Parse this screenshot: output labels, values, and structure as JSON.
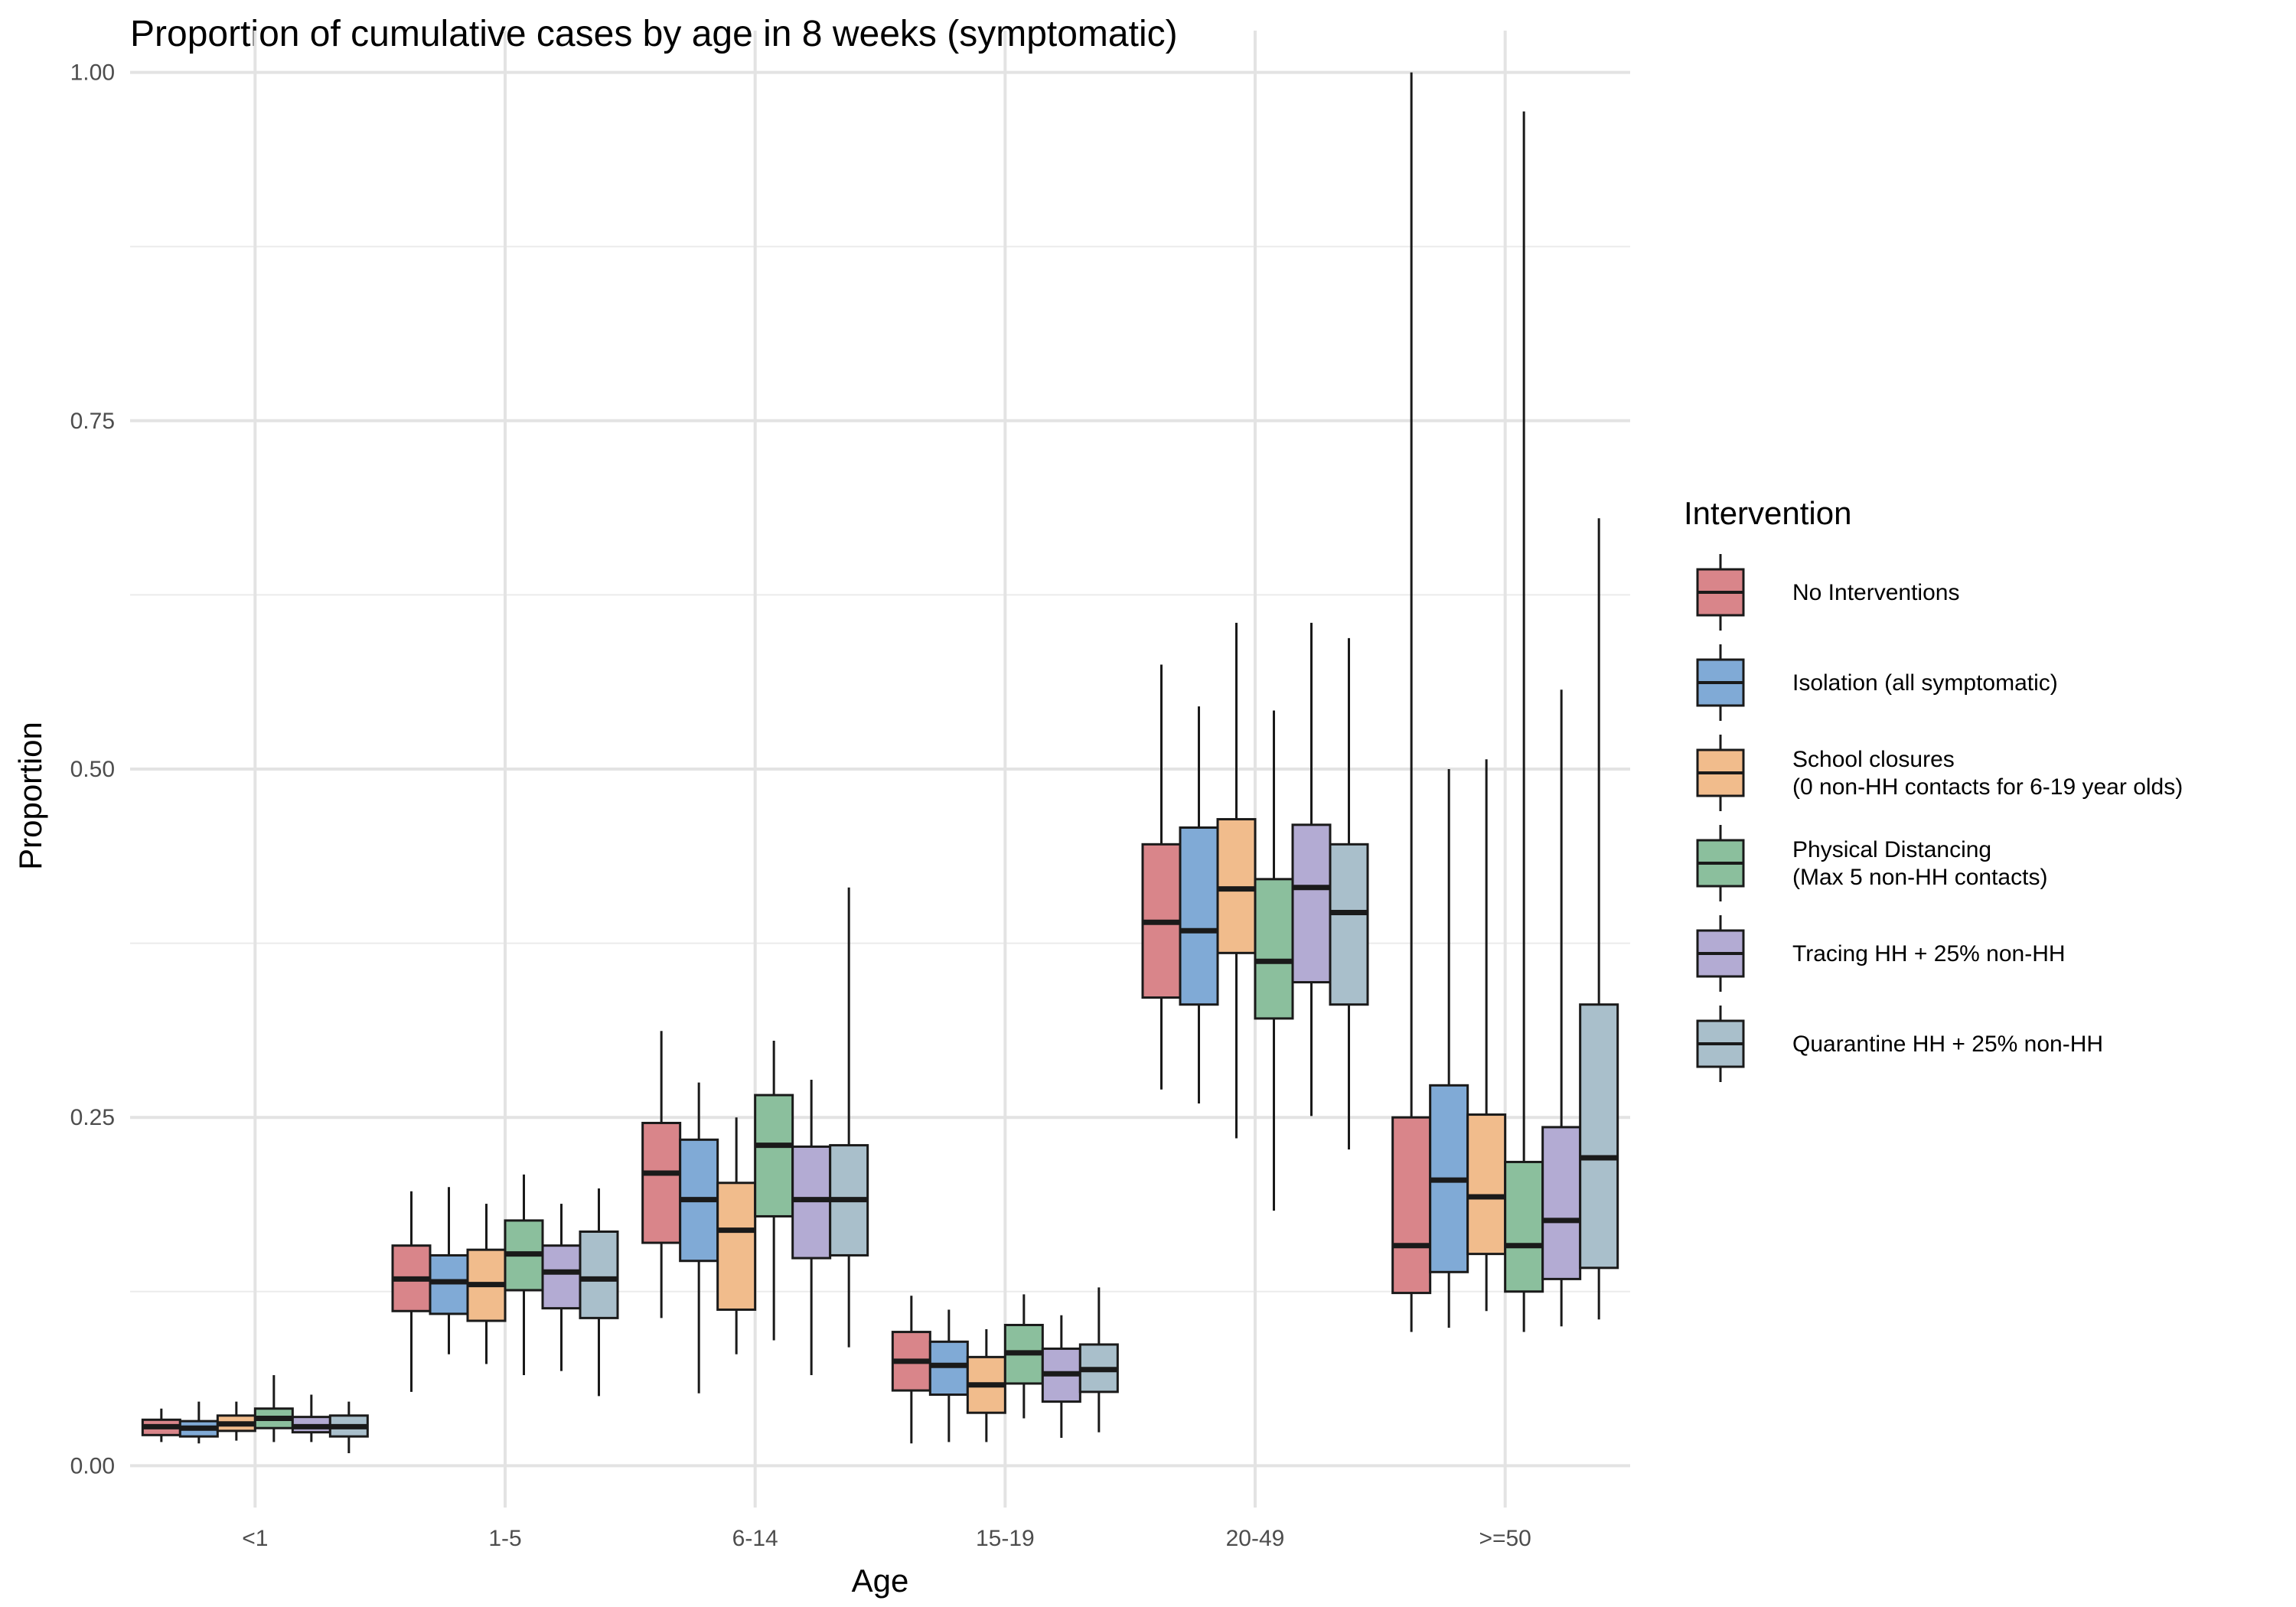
{
  "chart_data": {
    "type": "boxplot",
    "title": "Proportion of cumulative cases by age in 8 weeks (symptomatic)",
    "xlabel": "Age",
    "ylabel": "Proportion",
    "ylim": [
      -0.03,
      1.03
    ],
    "yticks": [
      0.0,
      0.25,
      0.5,
      0.75,
      1.0
    ],
    "ytick_labels": [
      "0.00",
      "0.25",
      "0.50",
      "0.75",
      "1.00"
    ],
    "categories": [
      "<1",
      "1-5",
      "6-14",
      "15-19",
      "20-49",
      ">=50"
    ],
    "grid": true,
    "legend": {
      "title": "Intervention",
      "position": "right",
      "entries": [
        {
          "label_lines": [
            "No Interventions"
          ],
          "color": "#d9858a"
        },
        {
          "label_lines": [
            "Isolation (all symptomatic)"
          ],
          "color": "#80aad6"
        },
        {
          "label_lines": [
            "School closures",
            "(0 non-HH contacts for 6-19 year olds)"
          ],
          "color": "#f1bc8c"
        },
        {
          "label_lines": [
            "Physical Distancing",
            "(Max 5 non-HH contacts)"
          ],
          "color": "#8bbf9d"
        },
        {
          "label_lines": [
            "Tracing HH + 25% non-HH"
          ],
          "color": "#b3abd3"
        },
        {
          "label_lines": [
            "Quarantine HH + 25% non-HH"
          ],
          "color": "#a9bfcb"
        }
      ]
    },
    "series": [
      {
        "name": "No Interventions",
        "color": "#d9858a",
        "boxes": [
          {
            "whisker_low": 0.017,
            "q1": 0.022,
            "median": 0.028,
            "q3": 0.033,
            "whisker_high": 0.041
          },
          {
            "whisker_low": 0.053,
            "q1": 0.111,
            "median": 0.134,
            "q3": 0.158,
            "whisker_high": 0.197
          },
          {
            "whisker_low": 0.106,
            "q1": 0.16,
            "median": 0.21,
            "q3": 0.246,
            "whisker_high": 0.312
          },
          {
            "whisker_low": 0.016,
            "q1": 0.054,
            "median": 0.075,
            "q3": 0.096,
            "whisker_high": 0.122
          },
          {
            "whisker_low": 0.27,
            "q1": 0.336,
            "median": 0.39,
            "q3": 0.446,
            "whisker_high": 0.575
          },
          {
            "whisker_low": 0.096,
            "q1": 0.124,
            "median": 0.158,
            "q3": 0.25,
            "whisker_high": 1.0
          }
        ]
      },
      {
        "name": "Isolation (all symptomatic)",
        "color": "#80aad6",
        "boxes": [
          {
            "whisker_low": 0.016,
            "q1": 0.021,
            "median": 0.027,
            "q3": 0.032,
            "whisker_high": 0.046
          },
          {
            "whisker_low": 0.08,
            "q1": 0.109,
            "median": 0.132,
            "q3": 0.151,
            "whisker_high": 0.2
          },
          {
            "whisker_low": 0.052,
            "q1": 0.147,
            "median": 0.191,
            "q3": 0.234,
            "whisker_high": 0.275
          },
          {
            "whisker_low": 0.017,
            "q1": 0.051,
            "median": 0.072,
            "q3": 0.089,
            "whisker_high": 0.112
          },
          {
            "whisker_low": 0.26,
            "q1": 0.331,
            "median": 0.384,
            "q3": 0.458,
            "whisker_high": 0.545
          },
          {
            "whisker_low": 0.099,
            "q1": 0.139,
            "median": 0.205,
            "q3": 0.273,
            "whisker_high": 0.5
          }
        ]
      },
      {
        "name": "School closures (0 non-HH contacts for 6-19 year olds)",
        "color": "#f1bc8c",
        "boxes": [
          {
            "whisker_low": 0.018,
            "q1": 0.025,
            "median": 0.03,
            "q3": 0.036,
            "whisker_high": 0.046
          },
          {
            "whisker_low": 0.073,
            "q1": 0.104,
            "median": 0.13,
            "q3": 0.155,
            "whisker_high": 0.188
          },
          {
            "whisker_low": 0.08,
            "q1": 0.112,
            "median": 0.169,
            "q3": 0.203,
            "whisker_high": 0.25
          },
          {
            "whisker_low": 0.017,
            "q1": 0.038,
            "median": 0.058,
            "q3": 0.078,
            "whisker_high": 0.098
          },
          {
            "whisker_low": 0.235,
            "q1": 0.368,
            "median": 0.414,
            "q3": 0.464,
            "whisker_high": 0.605
          },
          {
            "whisker_low": 0.111,
            "q1": 0.152,
            "median": 0.193,
            "q3": 0.252,
            "whisker_high": 0.507
          }
        ]
      },
      {
        "name": "Physical Distancing (Max 5 non-HH contacts)",
        "color": "#8bbf9d",
        "boxes": [
          {
            "whisker_low": 0.017,
            "q1": 0.027,
            "median": 0.034,
            "q3": 0.041,
            "whisker_high": 0.065
          },
          {
            "whisker_low": 0.065,
            "q1": 0.126,
            "median": 0.152,
            "q3": 0.176,
            "whisker_high": 0.209
          },
          {
            "whisker_low": 0.09,
            "q1": 0.179,
            "median": 0.23,
            "q3": 0.266,
            "whisker_high": 0.305
          },
          {
            "whisker_low": 0.034,
            "q1": 0.059,
            "median": 0.081,
            "q3": 0.101,
            "whisker_high": 0.123
          },
          {
            "whisker_low": 0.183,
            "q1": 0.321,
            "median": 0.362,
            "q3": 0.421,
            "whisker_high": 0.542
          },
          {
            "whisker_low": 0.096,
            "q1": 0.125,
            "median": 0.158,
            "q3": 0.218,
            "whisker_high": 0.972
          }
        ]
      },
      {
        "name": "Tracing HH + 25% non-HH",
        "color": "#b3abd3",
        "boxes": [
          {
            "whisker_low": 0.017,
            "q1": 0.024,
            "median": 0.028,
            "q3": 0.035,
            "whisker_high": 0.051
          },
          {
            "whisker_low": 0.068,
            "q1": 0.113,
            "median": 0.139,
            "q3": 0.158,
            "whisker_high": 0.188
          },
          {
            "whisker_low": 0.065,
            "q1": 0.149,
            "median": 0.191,
            "q3": 0.229,
            "whisker_high": 0.277
          },
          {
            "whisker_low": 0.02,
            "q1": 0.046,
            "median": 0.066,
            "q3": 0.084,
            "whisker_high": 0.108
          },
          {
            "whisker_low": 0.251,
            "q1": 0.347,
            "median": 0.415,
            "q3": 0.46,
            "whisker_high": 0.605
          },
          {
            "whisker_low": 0.1,
            "q1": 0.134,
            "median": 0.176,
            "q3": 0.243,
            "whisker_high": 0.557
          }
        ]
      },
      {
        "name": "Quarantine HH + 25% non-HH",
        "color": "#a9bfcb",
        "boxes": [
          {
            "whisker_low": 0.009,
            "q1": 0.021,
            "median": 0.028,
            "q3": 0.036,
            "whisker_high": 0.046
          },
          {
            "whisker_low": 0.05,
            "q1": 0.106,
            "median": 0.134,
            "q3": 0.168,
            "whisker_high": 0.199
          },
          {
            "whisker_low": 0.085,
            "q1": 0.151,
            "median": 0.191,
            "q3": 0.23,
            "whisker_high": 0.415
          },
          {
            "whisker_low": 0.024,
            "q1": 0.053,
            "median": 0.069,
            "q3": 0.087,
            "whisker_high": 0.128
          },
          {
            "whisker_low": 0.227,
            "q1": 0.331,
            "median": 0.397,
            "q3": 0.446,
            "whisker_high": 0.594
          },
          {
            "whisker_low": 0.105,
            "q1": 0.142,
            "median": 0.221,
            "q3": 0.331,
            "whisker_high": 0.68
          }
        ]
      }
    ]
  }
}
